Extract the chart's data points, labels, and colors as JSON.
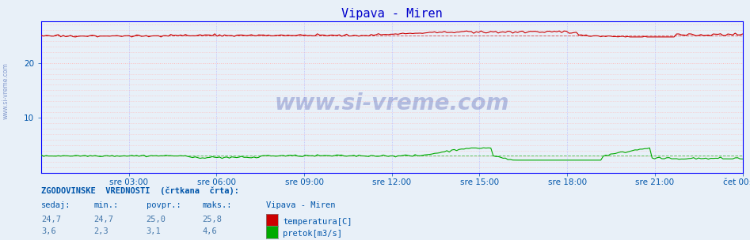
{
  "title": "Vipava - Miren",
  "title_color": "#0000cc",
  "bg_color": "#e8f0f8",
  "plot_bg_color": "#e8f0f8",
  "watermark": "www.si-vreme.com",
  "watermark_color": "#3344aa",
  "watermark_alpha": 0.3,
  "yticks": [
    10,
    20
  ],
  "ylim": [
    0,
    27.5
  ],
  "xtick_labels": [
    "sre 03:00",
    "sre 06:00",
    "sre 09:00",
    "sre 12:00",
    "sre 15:00",
    "sre 18:00",
    "sre 21:00",
    "čet 00:00"
  ],
  "n_points": 288,
  "temp_color": "#cc0000",
  "flow_color": "#00aa00",
  "avg_temp": 25.0,
  "avg_flow": 3.1,
  "legend_label1": "temperatura[C]",
  "legend_label2": "pretok[m3/s]",
  "legend_color1": "#cc0000",
  "legend_color2": "#00aa00",
  "stats_header": "ZGODOVINSKE  VREDNOSTI  (črtkana  črta):",
  "stats_col1": "sedaj:",
  "stats_col2": "min.:",
  "stats_col3": "povpr.:",
  "stats_col4": "maks.:",
  "stats_col5": "Vipava - Miren",
  "stats_temp_vals": [
    "24,7",
    "24,7",
    "25,0",
    "25,8"
  ],
  "stats_flow_vals": [
    "3,6",
    "2,3",
    "3,1",
    "4,6"
  ],
  "side_label": "www.si-vreme.com",
  "spine_color": "#0000ff",
  "grid_h_color": "#ffbbbb",
  "grid_v_color": "#aaaaff",
  "text_color": "#0055aa",
  "val_color": "#4477aa"
}
